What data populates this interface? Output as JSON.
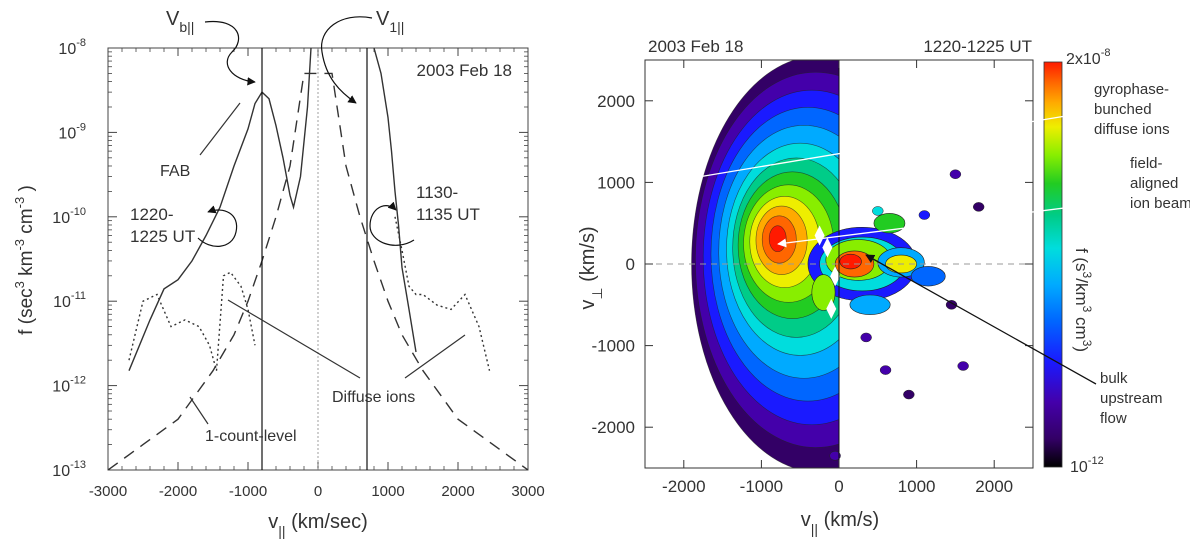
{
  "left_panel": {
    "date": "2003 Feb 18",
    "ylabel_main": "f (sec",
    "ylabel_rest": "km",
    "ylabel_cm": "cm",
    "xlabel": "v",
    "xlabel_unit": "(km/sec)",
    "xlabel_sub": "||",
    "vb_label": "V",
    "vb_sub": "b||",
    "v1_label": "V",
    "v1_sub": "1||",
    "fab_label": "FAB",
    "time1_line1": "1220-",
    "time1_line2": "1225 UT",
    "time2_line1": "1130-",
    "time2_line2": "1135 UT",
    "diffuse_label": "Diffuse ions",
    "count_label": "1-count-level",
    "x_ticks": [
      "-3000",
      "-2000",
      "-1000",
      "0",
      "1000",
      "2000",
      "3000"
    ],
    "y_ticks": [
      "10",
      "10",
      "10",
      "10",
      "10",
      "10"
    ],
    "y_exps": [
      "-8",
      "-9",
      "-10",
      "-11",
      "-12",
      "-13"
    ]
  },
  "right_panel": {
    "date": "2003 Feb 18",
    "time": "1220-1225 UT",
    "xlabel": "v",
    "xlabel_sub": "||",
    "xlabel_unit": "(km/s)",
    "ylabel": "v",
    "ylabel_sub": "⊥",
    "ylabel_unit": "(km/s)",
    "x_ticks": [
      "-2000",
      "-1000",
      "0",
      "1000",
      "2000"
    ],
    "y_ticks": [
      "2000",
      "1000",
      "0",
      "-1000",
      "-2000"
    ],
    "colorbar_max": "2x10",
    "colorbar_max_exp": "-8",
    "colorbar_min": "10",
    "colorbar_min_exp": "-12",
    "colorbar_label": "f (s",
    "colorbar_label_km": "/km",
    "colorbar_label_cm": "cm",
    "colorbar_label_sup": "3",
    "annotations": {
      "gyro_1": "gyrophase-",
      "gyro_2": "bunched",
      "gyro_3": "diffuse ions",
      "beam_1": "field-",
      "beam_2": "aligned",
      "beam_3": "ion beam",
      "bulk_1": "bulk",
      "bulk_2": "upstream",
      "bulk_3": "flow"
    }
  },
  "chart_data": [
    {
      "type": "line",
      "xlabel": "v|| (km/sec)",
      "ylabel": "f (sec^3 km^-3 cm^-3)",
      "xlim": [
        -3000,
        3000
      ],
      "ylim": [
        1e-13,
        1e-08
      ],
      "yscale": "log",
      "series": [
        {
          "name": "1220-1225 UT",
          "style": "solid",
          "x": [
            -2700,
            -2400,
            -2200,
            -2000,
            -1800,
            -1600,
            -1400,
            -1200,
            -1000,
            -900,
            -800,
            -700,
            -600,
            -500,
            -400,
            -350,
            -250,
            -150,
            -100,
            800,
            900,
            1000,
            1050,
            1100,
            1150,
            1200,
            1300,
            1400
          ],
          "y": [
            1.5e-12,
            6e-12,
            1.4e-11,
            1.8e-11,
            3e-11,
            6e-11,
            1.3e-10,
            4e-10,
            1.1e-09,
            2.2e-09,
            3e-09,
            2.5e-09,
            1.2e-09,
            5e-10,
            1.8e-10,
            1.3e-10,
            3e-10,
            2e-09,
            1e-08,
            1e-08,
            5e-09,
            1.5e-09,
            6e-10,
            2e-10,
            8e-11,
            2.5e-11,
            8e-12,
            2.5e-12
          ]
        },
        {
          "name": "1130-1135 UT",
          "style": "dotted",
          "x": [
            -2700,
            -2500,
            -2300,
            -2100,
            -1900,
            -1700,
            -1550,
            -1450,
            -1350,
            -1250,
            -1100,
            -1000,
            -900,
            1100,
            1200,
            1300,
            1400,
            1500,
            1700,
            1900,
            2100,
            2300,
            2450
          ],
          "y": [
            2e-12,
            1e-11,
            1.2e-11,
            5e-12,
            6e-12,
            5e-12,
            3e-12,
            1.5e-12,
            2e-11,
            2.2e-11,
            1.5e-11,
            8e-12,
            3e-12,
            1e-10,
            4e-11,
            1.5e-11,
            1.2e-11,
            1.2e-11,
            9e-12,
            8e-12,
            1.2e-11,
            5e-12,
            1.5e-12
          ]
        },
        {
          "name": "1-count-level",
          "style": "dashed",
          "x": [
            -3000,
            -2500,
            -2000,
            -1500,
            -1200,
            -1000,
            -800,
            -600,
            -400,
            -200,
            200,
            400,
            600,
            800,
            1000,
            1200,
            1500,
            2000,
            2500,
            3000
          ],
          "y": [
            1e-13,
            2e-13,
            4e-13,
            1.5e-12,
            4e-12,
            1e-11,
            3e-11,
            1e-10,
            4e-10,
            5e-09,
            5e-09,
            4e-10,
            1e-10,
            3e-11,
            1e-11,
            4e-12,
            1.5e-12,
            4e-13,
            2e-13,
            1e-13
          ]
        }
      ],
      "vlines": [
        -800,
        0,
        700
      ]
    },
    {
      "type": "heatmap",
      "xlabel": "v|| (km/s)",
      "ylabel": "v⊥ (km/s)",
      "xlim": [
        -2500,
        2500
      ],
      "ylim": [
        -2500,
        2500
      ],
      "color_range": [
        1e-12,
        2e-08
      ],
      "colormap": [
        "#000000",
        "#330066",
        "#4400aa",
        "#1a1aff",
        "#0066ff",
        "#00aaff",
        "#00dddd",
        "#00cc88",
        "#22cc22",
        "#88ee00",
        "#eeee00",
        "#ffaa00",
        "#ff6600",
        "#ff1a00"
      ]
    }
  ]
}
